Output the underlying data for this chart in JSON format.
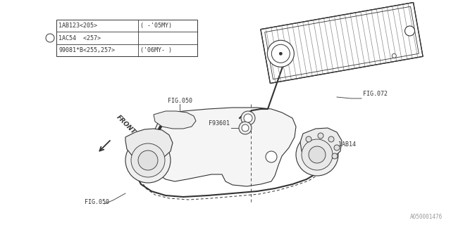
{
  "bg_color": "#ffffff",
  "line_color": "#333333",
  "fig_width": 6.4,
  "fig_height": 3.2,
  "watermark": "A050001476",
  "table_rows": [
    [
      "1AB123<205>",
      "( -'05MY)"
    ],
    [
      "1AC54  <257>",
      ""
    ],
    [
      "99081*B<255,257>",
      "('06MY- )"
    ]
  ]
}
